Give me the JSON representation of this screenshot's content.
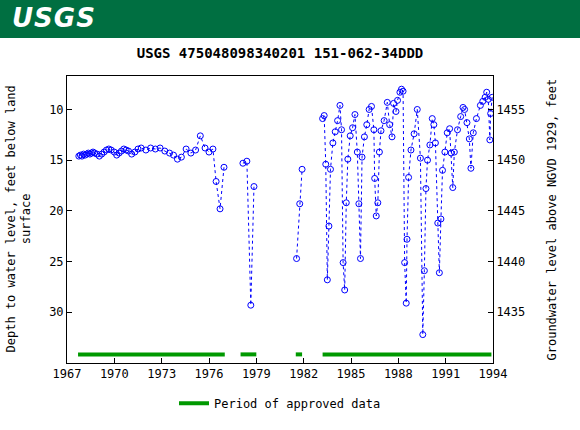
{
  "header": "USGS",
  "chart_data": {
    "type": "scatter",
    "title": "USGS 475048098340201 151-062-34DDD",
    "ylabel": "Depth to water level, feet below land surface",
    "y2label": "Groundwater level above NGVD 1929, feet",
    "xlim": [
      1967,
      1994
    ],
    "xticks": [
      1967,
      1970,
      1973,
      1976,
      1979,
      1982,
      1985,
      1988,
      1991,
      1994
    ],
    "ylim": [
      35,
      6.7
    ],
    "yticks": [
      10,
      15,
      20,
      25,
      30
    ],
    "y2lim": [
      1430,
      1458.3
    ],
    "y2ticks": [
      1435,
      1440,
      1445,
      1450,
      1455
    ],
    "grid": false,
    "color": "#0000ff",
    "marker": "circle-open",
    "line_style": "dot",
    "x": [
      1967.75,
      1967.85,
      1967.95,
      1968.05,
      1968.15,
      1968.25,
      1968.35,
      1968.45,
      1968.55,
      1968.65,
      1968.75,
      1968.9,
      1969.05,
      1969.2,
      1969.35,
      1969.5,
      1969.65,
      1969.8,
      1970.0,
      1970.15,
      1970.3,
      1970.45,
      1970.6,
      1970.75,
      1970.9,
      1971.1,
      1971.3,
      1971.5,
      1971.7,
      1972.0,
      1972.3,
      1972.6,
      1972.9,
      1973.2,
      1973.5,
      1973.75,
      1974.0,
      1974.25,
      1974.55,
      1974.85,
      1975.15,
      1975.45,
      1975.75,
      1976.0,
      1976.25,
      1976.45,
      1976.7,
      1976.95,
      null,
      1978.15,
      1978.4,
      1978.65,
      1978.85,
      null,
      1981.55,
      1981.75,
      1981.9,
      null,
      1983.2,
      1983.3,
      1983.4,
      1983.5,
      1983.6,
      1983.7,
      1983.85,
      1984.0,
      1984.15,
      1984.3,
      1984.4,
      1984.5,
      1984.6,
      1984.7,
      1984.8,
      1984.95,
      1985.1,
      1985.25,
      1985.4,
      1985.5,
      1985.6,
      1985.7,
      1985.85,
      1986.0,
      1986.15,
      1986.3,
      1986.45,
      1986.5,
      1986.6,
      1986.7,
      1986.8,
      1986.9,
      1987.1,
      1987.3,
      1987.45,
      1987.6,
      1987.7,
      1987.85,
      1987.95,
      1988.1,
      1988.2,
      1988.3,
      1988.4,
      1988.5,
      1988.55,
      1988.65,
      1988.8,
      1989.0,
      1989.2,
      1989.4,
      1989.55,
      1989.65,
      1989.75,
      1989.85,
      1990.0,
      1990.15,
      1990.25,
      1990.35,
      1990.5,
      1990.6,
      1990.7,
      1990.8,
      1990.95,
      1991.1,
      1991.25,
      1991.35,
      1991.45,
      1991.55,
      1991.75,
      1991.95,
      1992.1,
      1992.2,
      1992.35,
      1992.5,
      1992.6,
      1992.75,
      1992.95,
      1993.2,
      1993.35,
      1993.5,
      1993.6,
      1993.7,
      1993.8,
      1993.85,
      1993.95
    ],
    "values": [
      14.6,
      14.5,
      14.6,
      14.4,
      14.5,
      14.4,
      14.3,
      14.4,
      14.3,
      14.2,
      14.3,
      14.4,
      14.6,
      14.4,
      14.2,
      14.0,
      13.9,
      14.0,
      14.2,
      14.5,
      14.3,
      14.1,
      13.9,
      14.0,
      14.1,
      14.4,
      14.2,
      13.9,
      13.8,
      14.0,
      13.8,
      13.9,
      13.8,
      14.1,
      14.3,
      14.5,
      14.9,
      14.7,
      13.9,
      14.3,
      14.0,
      12.6,
      13.8,
      14.2,
      13.9,
      17.1,
      19.8,
      15.7,
      null,
      15.3,
      15.1,
      29.3,
      17.6,
      null,
      24.7,
      19.3,
      15.9,
      null,
      10.9,
      10.6,
      15.4,
      26.8,
      21.5,
      15.9,
      13.3,
      12.2,
      11.1,
      9.6,
      12.0,
      25.1,
      27.8,
      19.2,
      14.9,
      12.6,
      11.8,
      10.5,
      14.2,
      19.3,
      24.7,
      14.7,
      12.7,
      11.5,
      10.0,
      9.7,
      12.0,
      16.8,
      20.5,
      19.2,
      14.2,
      12.1,
      11.1,
      9.3,
      11.5,
      12.7,
      9.4,
      10.2,
      9.1,
      8.3,
      8.0,
      8.2,
      25.1,
      29.1,
      22.8,
      16.7,
      14.0,
      12.4,
      10.0,
      14.8,
      32.2,
      25.9,
      17.8,
      15.0,
      13.5,
      10.9,
      11.5,
      13.3,
      21.2,
      26.1,
      20.8,
      16.0,
      14.2,
      12.3,
      11.9,
      14.3,
      17.7,
      14.2,
      12.0,
      10.7,
      9.8,
      10.0,
      11.3,
      12.9,
      15.8,
      12.3,
      10.9,
      9.6,
      9.2,
      8.8,
      8.3,
      9.0,
      13.0,
      10.4,
      8.8
    ],
    "approved_periods": {
      "name": "Period of approved data",
      "color": "#009900",
      "ranges": [
        [
          1967.7,
          1977.0
        ],
        [
          1978.0,
          1979.0
        ],
        [
          1981.5,
          1981.9
        ],
        [
          1983.2,
          1993.9
        ]
      ]
    },
    "legend": "bottom"
  }
}
